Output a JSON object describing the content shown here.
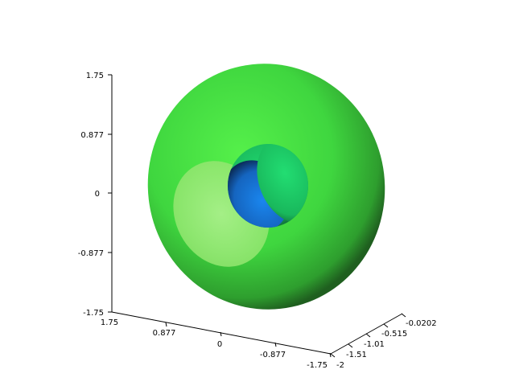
{
  "axes": {
    "z_ticks": [
      "1.75",
      "0.877",
      "0",
      "-0.877",
      "-1.75"
    ],
    "x_ticks": [
      "1.75",
      "0.877",
      "0",
      "-0.877",
      "-1.75"
    ],
    "y_ticks": [
      "-2",
      "-1.51",
      "-1.01",
      "-0.515",
      "-0.0202"
    ]
  },
  "colors": {
    "outer_sphere": "#3fd63f",
    "inner_sphere": "#1fc76a",
    "intersection": "#1e6fd6",
    "highlight": "#c9f2b0",
    "axis": "#000000",
    "background": "#ffffff"
  }
}
